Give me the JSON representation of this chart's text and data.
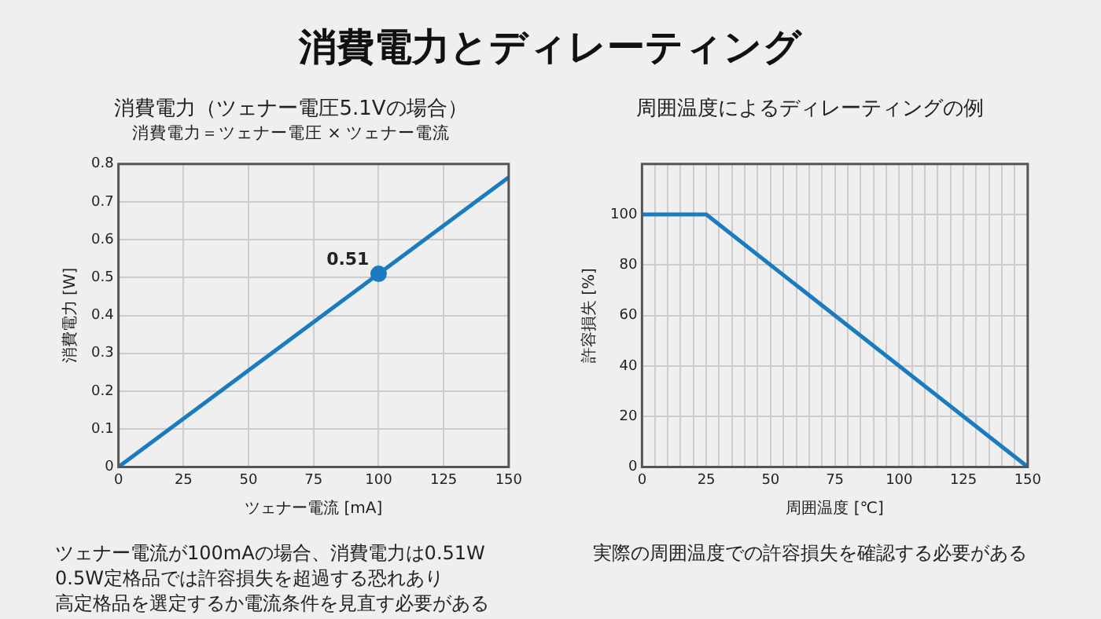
{
  "chart_data": [
    {
      "type": "other",
      "title": "消費電力とディレーティング"
    },
    {
      "type": "line",
      "title": "消費電力（ツェナー電圧5.1Vの場合）",
      "subtitle": "消費電力＝ツェナー電圧 × ツェナー電流",
      "xlabel": "ツェナー電流 [mA]",
      "ylabel": "消費電力 [W]",
      "xlim": [
        0,
        150
      ],
      "ylim": [
        0,
        0.8
      ],
      "xticks": [
        0,
        25,
        50,
        75,
        100,
        125,
        150
      ],
      "yticks": [
        0,
        0.1,
        0.2,
        0.3,
        0.4,
        0.5,
        0.6,
        0.7,
        0.8
      ],
      "grid": true,
      "legend": false,
      "series": [
        {
          "type": "line",
          "color": "#1a7bbf",
          "x": [
            0,
            150
          ],
          "values": [
            0,
            0.765
          ],
          "marker": "none"
        },
        {
          "type": "scatter",
          "color": "#1a7bbf",
          "x": [
            100
          ],
          "values": [
            0.51
          ],
          "value_labels": [
            "0.51"
          ],
          "marker": "circle"
        }
      ],
      "annotations": [
        "ツェナー電流が100mAの場合、消費電力は0.51W",
        "0.5W定格品では許容損失を超過する恐れあり",
        "高定格品を選定するか電流条件を見直す必要がある"
      ]
    },
    {
      "type": "line",
      "title": "周囲温度によるディレーティングの例",
      "xlabel": "周囲温度 [℃]",
      "ylabel": "許容損失 [%]",
      "xlim": [
        0,
        150
      ],
      "ylim": [
        0,
        120
      ],
      "xticks": [
        0,
        {
          "value": 5,
          "label": null
        },
        {
          "value": 10,
          "label": null
        },
        {
          "value": 15,
          "label": null
        },
        {
          "value": 20,
          "label": null
        },
        25,
        {
          "value": 30,
          "label": null
        },
        {
          "value": 35,
          "label": null
        },
        {
          "value": 40,
          "label": null
        },
        {
          "value": 45,
          "label": null
        },
        50,
        {
          "value": 55,
          "label": null
        },
        {
          "value": 60,
          "label": null
        },
        {
          "value": 65,
          "label": null
        },
        {
          "value": 70,
          "label": null
        },
        75,
        {
          "value": 80,
          "label": null
        },
        {
          "value": 85,
          "label": null
        },
        {
          "value": 90,
          "label": null
        },
        {
          "value": 95,
          "label": null
        },
        100,
        {
          "value": 105,
          "label": null
        },
        {
          "value": 110,
          "label": null
        },
        {
          "value": 115,
          "label": null
        },
        {
          "value": 120,
          "label": null
        },
        125,
        {
          "value": 130,
          "label": null
        },
        {
          "value": 135,
          "label": null
        },
        {
          "value": 140,
          "label": null
        },
        {
          "value": 145,
          "label": null
        },
        150
      ],
      "yticks": [
        0,
        20,
        40,
        60,
        80,
        100
      ],
      "grid": true,
      "legend": false,
      "series": [
        {
          "type": "line",
          "color": "#1a7bbf",
          "x": [
            0,
            25,
            150
          ],
          "values": [
            100,
            100,
            0
          ],
          "marker": "none"
        }
      ],
      "annotations": [
        "実際の周囲温度での許容損失を確認する必要がある"
      ]
    }
  ]
}
